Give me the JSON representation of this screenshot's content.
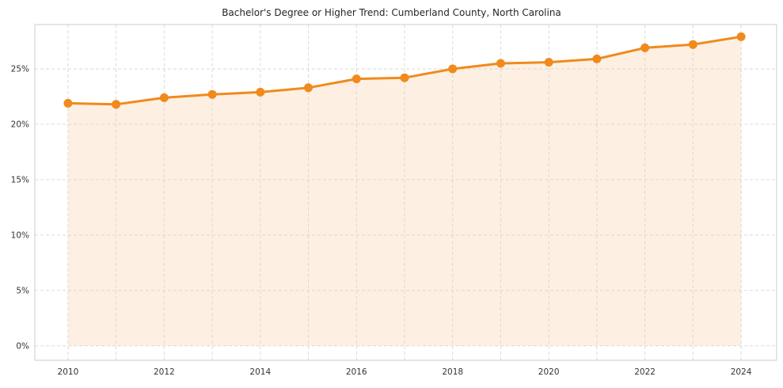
{
  "title": "Bachelor's Degree or Higher Trend: Cumberland County, North Carolina",
  "chart_data": {
    "type": "area",
    "series_name": "Bachelor's Degree or Higher (%)",
    "x": [
      2010,
      2011,
      2012,
      2013,
      2014,
      2015,
      2016,
      2017,
      2018,
      2019,
      2020,
      2021,
      2022,
      2023,
      2024
    ],
    "values": [
      21.9,
      21.8,
      22.4,
      22.7,
      22.9,
      23.3,
      24.1,
      24.2,
      25.0,
      25.5,
      25.6,
      25.9,
      26.9,
      27.2,
      27.9
    ],
    "title": "Bachelor's Degree or Higher Trend: Cumberland County, North Carolina",
    "xlabel": "",
    "ylabel": "",
    "xlim": [
      2009.31,
      2024.74
    ],
    "ylim": [
      -1.3,
      29.0
    ],
    "x_ticks": [
      2010,
      2012,
      2014,
      2016,
      2018,
      2020,
      2022,
      2024
    ],
    "y_ticks": [
      0,
      5,
      10,
      15,
      20,
      25
    ],
    "y_tick_suffix": "%",
    "grid": true,
    "legend_position": "none",
    "colors": {
      "line": "#f08a1d",
      "marker": "#f08a1d",
      "fill": "#fdf0e2",
      "grid": "#d4d4d4",
      "spine": "#cccccc",
      "tick_label": "#333333",
      "title": "#262626"
    }
  }
}
